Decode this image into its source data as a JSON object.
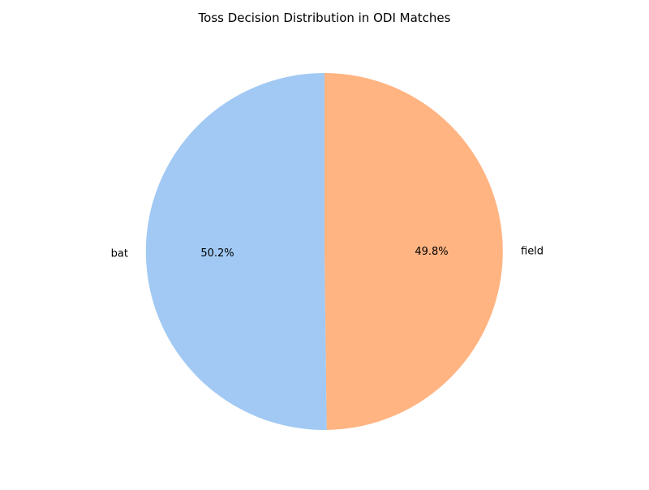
{
  "chart_data": {
    "type": "pie",
    "title": "Toss Decision Distribution in ODI Matches",
    "categories": [
      "bat",
      "field"
    ],
    "values": [
      50.2,
      49.8
    ],
    "value_labels": [
      "50.2%",
      "49.8%"
    ],
    "colors": [
      "#a1c9f4",
      "#ffb482"
    ],
    "start_angle_deg": 90,
    "direction": "counterclockwise",
    "legend": "none"
  }
}
